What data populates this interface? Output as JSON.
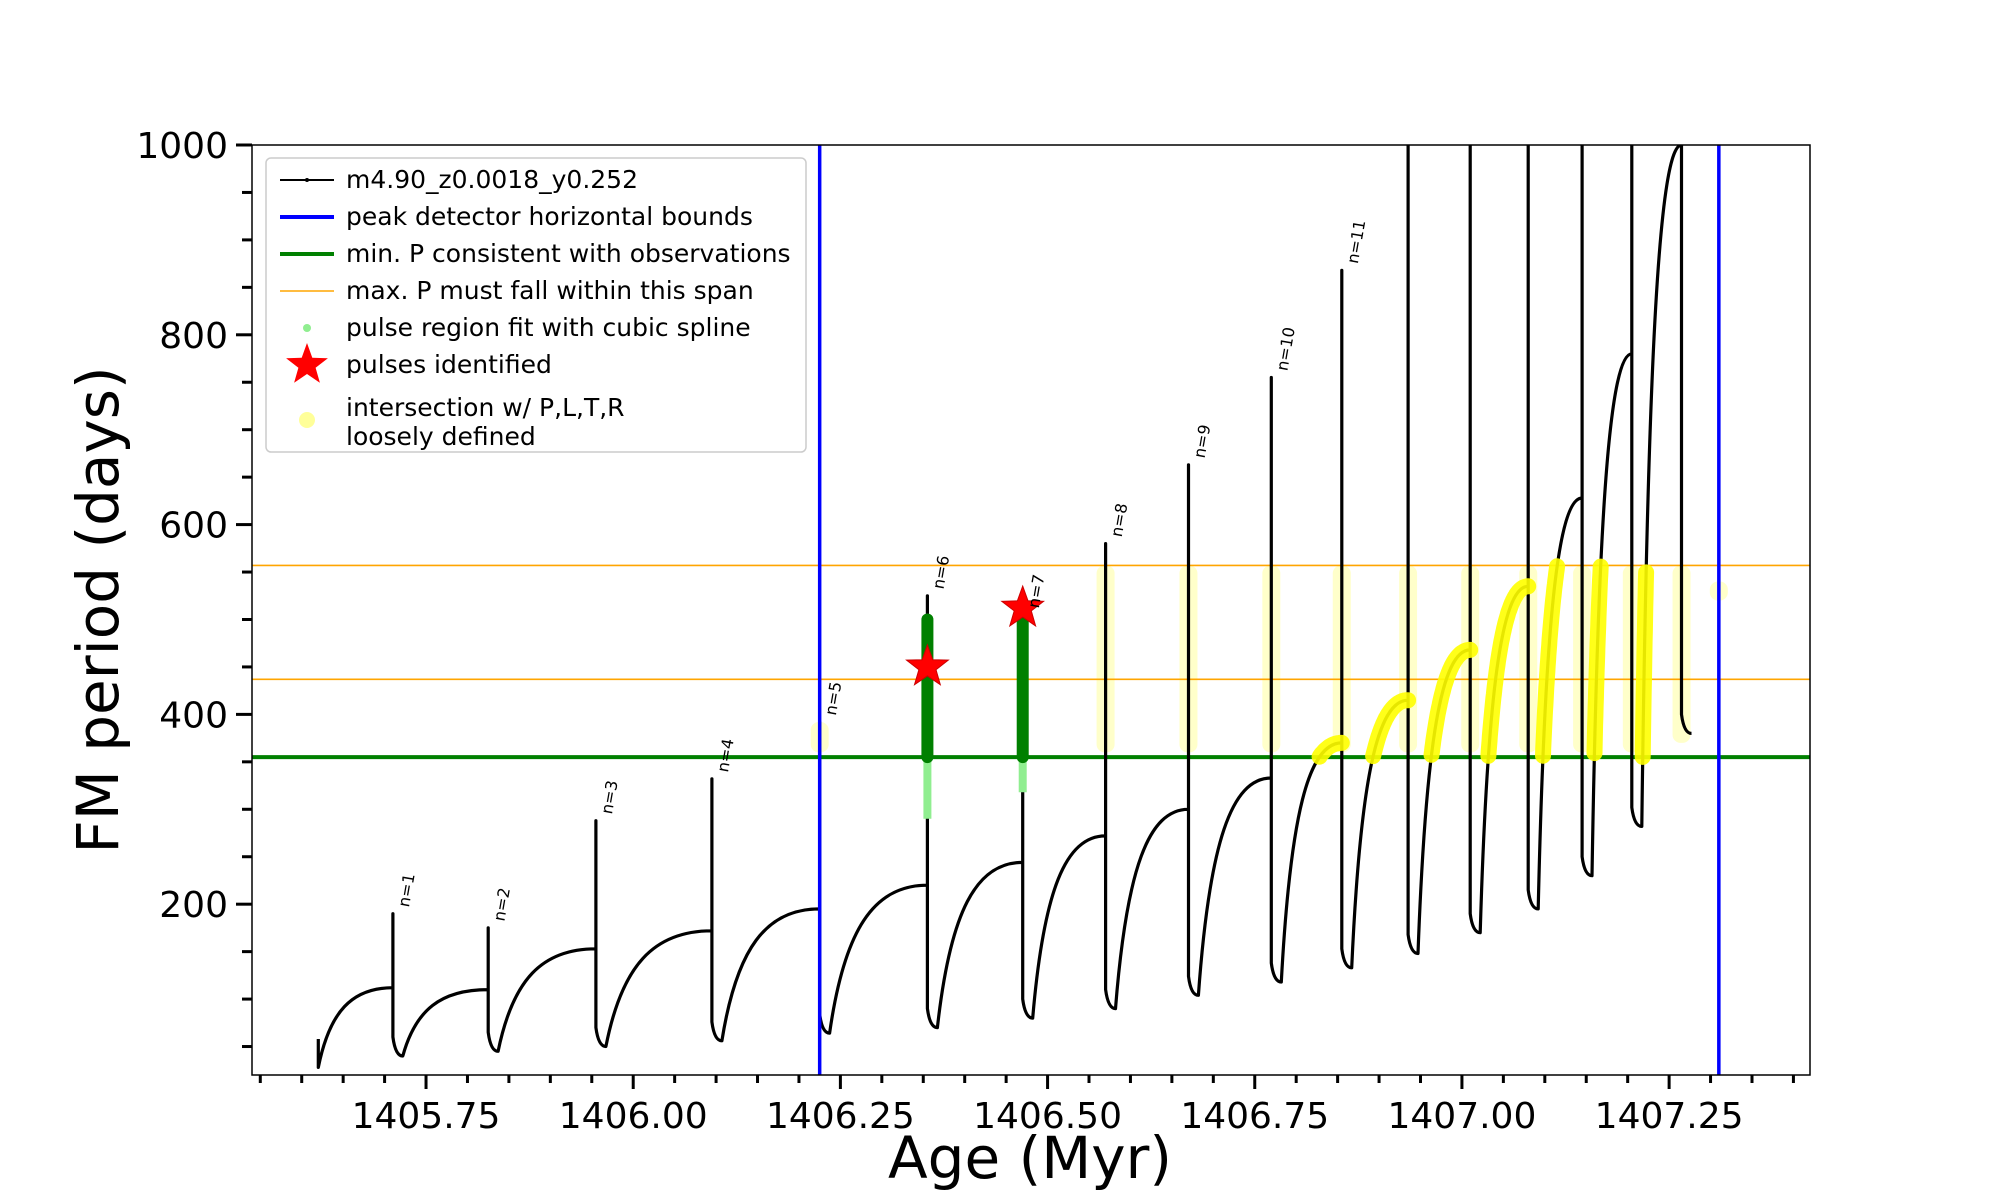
{
  "chart_data": {
    "type": "line",
    "xlabel": "Age (Myr)",
    "ylabel": "FM period (days)",
    "xlim": [
      1405.54,
      1407.42
    ],
    "ylim": [
      20,
      1000
    ],
    "xticks": [
      1405.75,
      1406.0,
      1406.25,
      1406.5,
      1406.75,
      1407.0,
      1407.25
    ],
    "xtick_labels": [
      "1405.75",
      "1406.00",
      "1406.25",
      "1406.50",
      "1406.75",
      "1407.00",
      "1407.25"
    ],
    "yticks": [
      200,
      400,
      600,
      800,
      1000
    ],
    "ytick_labels": [
      "200",
      "400",
      "600",
      "800",
      "1000"
    ],
    "grid": false,
    "legend_position": "top-left",
    "legend": [
      {
        "label": "m4.90_z0.0018_y0.252",
        "style": "line-dot",
        "color": "#000000"
      },
      {
        "label": "peak detector horizontal bounds",
        "style": "line",
        "color": "#0000ff"
      },
      {
        "label": "min. P consistent with observations",
        "style": "line",
        "color": "#008000"
      },
      {
        "label": "max. P must fall within this span",
        "style": "thin-line",
        "color": "#ffa500"
      },
      {
        "label": "pulse region fit with cubic spline",
        "style": "dot",
        "color": "#90ee90"
      },
      {
        "label": "pulses identified",
        "style": "star",
        "color": "#ff0000"
      },
      {
        "label": "intersection w/ P,L,T,R",
        "label2": "loosely defined",
        "style": "big-dot",
        "color": "#ffff99"
      }
    ],
    "vertical_lines": [
      {
        "x": 1406.225,
        "color": "#0000ff",
        "name": "peak detector horizontal bounds"
      },
      {
        "x": 1407.31,
        "color": "#0000ff",
        "name": "peak detector horizontal bounds"
      }
    ],
    "horizontal_lines": [
      {
        "y": 355,
        "color": "#008000",
        "name": "min. P consistent with observations"
      },
      {
        "y": 437,
        "color": "#ffa500",
        "name": "max. P must fall within this span"
      },
      {
        "y": 557,
        "color": "#ffa500",
        "name": "max. P must fall within this span"
      }
    ],
    "pulses": [
      {
        "label": "n=1",
        "x": 1405.71,
        "peak": 190,
        "pre": 112,
        "trough": 40
      },
      {
        "label": "n=2",
        "x": 1405.825,
        "peak": 175,
        "pre": 110,
        "trough": 45
      },
      {
        "label": "n=3",
        "x": 1405.955,
        "peak": 288,
        "pre": 153,
        "trough": 50
      },
      {
        "label": "n=4",
        "x": 1406.095,
        "peak": 332,
        "pre": 172,
        "trough": 56
      },
      {
        "label": "n=5",
        "x": 1406.225,
        "peak": 392,
        "pre": 195,
        "trough": 64
      },
      {
        "label": "n=6",
        "x": 1406.355,
        "peak": 525,
        "pre": 220,
        "trough": 70
      },
      {
        "label": "n=7",
        "x": 1406.47,
        "peak": 505,
        "pre": 244,
        "trough": 80
      },
      {
        "label": "n=8",
        "x": 1406.57,
        "peak": 580,
        "pre": 272,
        "trough": 90
      },
      {
        "label": "n=9",
        "x": 1406.67,
        "peak": 663,
        "pre": 300,
        "trough": 104
      },
      {
        "label": "n=10",
        "x": 1406.77,
        "peak": 755,
        "pre": 333,
        "trough": 118
      },
      {
        "label": "n=11",
        "x": 1406.855,
        "peak": 868,
        "pre": 370,
        "trough": 133
      },
      {
        "label": "",
        "x": 1406.935,
        "peak": 1000,
        "pre": 415,
        "trough": 148
      },
      {
        "label": "",
        "x": 1407.01,
        "peak": 1000,
        "pre": 468,
        "trough": 170
      },
      {
        "label": "",
        "x": 1407.08,
        "peak": 1000,
        "pre": 535,
        "trough": 195
      },
      {
        "label": "",
        "x": 1407.145,
        "peak": 1000,
        "pre": 628,
        "trough": 230
      },
      {
        "label": "",
        "x": 1407.205,
        "peak": 1000,
        "pre": 780,
        "trough": 282
      },
      {
        "label": "",
        "x": 1407.265,
        "peak": 1000,
        "pre": 1000,
        "trough": 380
      }
    ],
    "series_start": {
      "x": 1405.62,
      "y": 28
    },
    "pulses_identified": [
      {
        "x": 1406.355,
        "y": 450
      },
      {
        "x": 1406.47,
        "y": 512
      }
    ],
    "spline_regions": [
      {
        "x": 1406.355,
        "y_min": 290,
        "y_max": 500
      },
      {
        "x": 1406.47,
        "y_min": 318,
        "y_max": 500
      }
    ],
    "intersection_bands": [
      {
        "x": 1406.225,
        "y_min": 360,
        "y_max": 392
      },
      {
        "x": 1406.57,
        "y_min": 360,
        "y_max": 557
      },
      {
        "x": 1406.67,
        "y_min": 360,
        "y_max": 557
      },
      {
        "x": 1406.77,
        "y_min": 360,
        "y_max": 557
      },
      {
        "x": 1406.855,
        "y_min": 360,
        "y_max": 557
      },
      {
        "x": 1406.935,
        "y_min": 360,
        "y_max": 557
      },
      {
        "x": 1407.01,
        "y_min": 360,
        "y_max": 557
      },
      {
        "x": 1407.08,
        "y_min": 360,
        "y_max": 557
      },
      {
        "x": 1407.145,
        "y_min": 360,
        "y_max": 557
      },
      {
        "x": 1407.205,
        "y_min": 360,
        "y_max": 557
      },
      {
        "x": 1407.265,
        "y_min": 370,
        "y_max": 557
      },
      {
        "x": 1407.31,
        "y_min": 520,
        "y_max": 540
      }
    ]
  }
}
